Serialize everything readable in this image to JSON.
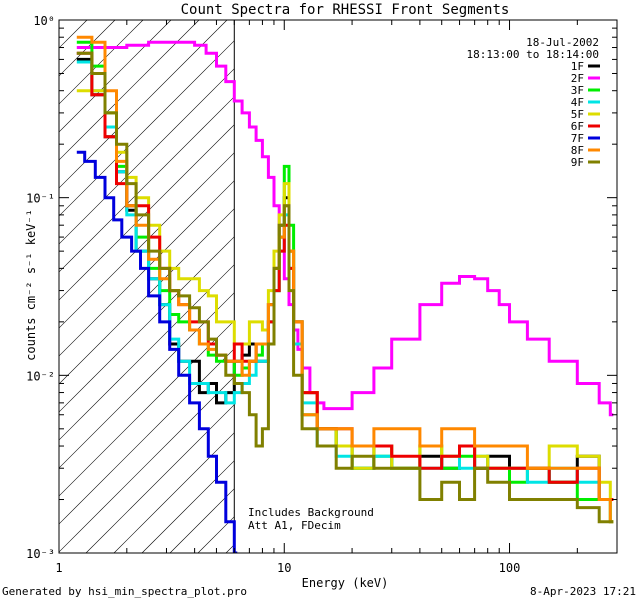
{
  "chart_data": {
    "type": "line",
    "title": "Count Spectra for RHESSI Front Segments",
    "xlabel": "Energy (keV)",
    "ylabel": "counts cm⁻² s⁻¹ keV⁻¹",
    "xscale": "log",
    "yscale": "log",
    "xlim": [
      1,
      300
    ],
    "ylim": [
      0.001,
      1
    ],
    "x_tick_labels": [
      "1",
      "10",
      "100"
    ],
    "y_tick_labels": [
      "10⁻³",
      "10⁻²",
      "10⁻¹",
      "10⁰"
    ],
    "date": "18-Jul-2002",
    "time_range": "18:13:00 to 18:14:00",
    "threshold_energy": 6,
    "annotation_lines": [
      "Includes Background",
      "Att A1, FDecim"
    ],
    "footer_left": "Generated by hsi_min_spectra_plot.pro",
    "footer_right": "8-Apr-2023 17:21",
    "series": [
      {
        "name": "1F",
        "color": "#000000",
        "x": [
          1.2,
          1.4,
          1.6,
          1.8,
          2.0,
          2.2,
          2.5,
          2.8,
          3.1,
          3.4,
          3.8,
          4.2,
          4.6,
          5.0,
          5.5,
          6.0,
          6.5,
          7.0,
          7.5,
          8.0,
          8.5,
          9.0,
          9.5,
          10.0,
          10.5,
          11.0,
          12,
          14,
          17,
          20,
          25,
          30,
          40,
          50,
          60,
          70,
          80,
          100,
          120,
          150,
          200,
          250,
          280
        ],
        "y": [
          0.6,
          0.38,
          0.22,
          0.14,
          0.085,
          0.05,
          0.035,
          0.025,
          0.015,
          0.012,
          0.012,
          0.008,
          0.009,
          0.007,
          0.008,
          0.012,
          0.013,
          0.015,
          0.012,
          0.012,
          0.025,
          0.04,
          0.07,
          0.1,
          0.05,
          0.02,
          0.008,
          0.005,
          0.004,
          0.003,
          0.004,
          0.003,
          0.0035,
          0.003,
          0.004,
          0.003,
          0.0035,
          0.003,
          0.003,
          0.0025,
          0.0035,
          0.002,
          0.002
        ]
      },
      {
        "name": "2F",
        "color": "#ff00ff",
        "x": [
          1.2,
          1.5,
          2,
          2.5,
          3,
          3.5,
          4,
          4.5,
          5,
          5.5,
          6,
          6.5,
          7,
          7.5,
          8,
          8.5,
          9,
          9.5,
          10,
          10.5,
          11,
          11.5,
          12,
          13,
          14,
          15,
          17,
          20,
          25,
          30,
          40,
          50,
          60,
          70,
          80,
          90,
          100,
          120,
          150,
          200,
          250,
          280
        ],
        "y": [
          0.7,
          0.7,
          0.72,
          0.75,
          0.75,
          0.75,
          0.72,
          0.65,
          0.55,
          0.45,
          0.35,
          0.3,
          0.25,
          0.21,
          0.17,
          0.13,
          0.09,
          0.06,
          0.035,
          0.025,
          0.018,
          0.014,
          0.011,
          0.008,
          0.007,
          0.0065,
          0.0065,
          0.008,
          0.011,
          0.016,
          0.025,
          0.033,
          0.036,
          0.035,
          0.03,
          0.025,
          0.02,
          0.016,
          0.012,
          0.009,
          0.007,
          0.006
        ]
      },
      {
        "name": "3F",
        "color": "#00ee00",
        "x": [
          1.2,
          1.4,
          1.6,
          1.8,
          2.0,
          2.2,
          2.5,
          2.8,
          3.1,
          3.4,
          3.8,
          4.2,
          4.6,
          5.0,
          5.5,
          6.0,
          6.5,
          7.0,
          7.5,
          8.0,
          8.5,
          9.0,
          9.5,
          10.0,
          10.5,
          11.0,
          12,
          14,
          17,
          20,
          25,
          30,
          40,
          50,
          60,
          70,
          80,
          100,
          120,
          150,
          200,
          250,
          280
        ],
        "y": [
          0.75,
          0.55,
          0.3,
          0.15,
          0.09,
          0.06,
          0.04,
          0.03,
          0.022,
          0.02,
          0.018,
          0.015,
          0.013,
          0.012,
          0.012,
          0.01,
          0.011,
          0.012,
          0.013,
          0.015,
          0.02,
          0.03,
          0.06,
          0.15,
          0.07,
          0.02,
          0.006,
          0.005,
          0.004,
          0.003,
          0.0035,
          0.003,
          0.004,
          0.003,
          0.0035,
          0.003,
          0.003,
          0.0025,
          0.003,
          0.0025,
          0.002,
          0.002,
          0.0015
        ]
      },
      {
        "name": "4F",
        "color": "#00e5e5",
        "x": [
          1.2,
          1.4,
          1.6,
          1.8,
          2.0,
          2.2,
          2.5,
          2.8,
          3.1,
          3.4,
          3.8,
          4.2,
          4.6,
          5.0,
          5.5,
          6.0,
          6.5,
          7.0,
          7.5,
          8.0,
          8.5,
          9.0,
          9.5,
          10.0,
          10.5,
          11.0,
          12,
          14,
          17,
          20,
          25,
          30,
          40,
          50,
          60,
          70,
          80,
          100,
          120,
          150,
          200,
          250,
          280
        ],
        "y": [
          0.58,
          0.4,
          0.25,
          0.14,
          0.08,
          0.05,
          0.035,
          0.025,
          0.016,
          0.012,
          0.009,
          0.009,
          0.008,
          0.008,
          0.007,
          0.008,
          0.009,
          0.01,
          0.012,
          0.012,
          0.02,
          0.03,
          0.05,
          0.08,
          0.04,
          0.015,
          0.007,
          0.004,
          0.0035,
          0.003,
          0.0035,
          0.003,
          0.003,
          0.0035,
          0.003,
          0.0035,
          0.003,
          0.003,
          0.0025,
          0.003,
          0.0025,
          0.002,
          0.002
        ]
      },
      {
        "name": "5F",
        "color": "#dddd00",
        "x": [
          1.2,
          1.4,
          1.6,
          1.8,
          2.0,
          2.2,
          2.5,
          2.8,
          3.1,
          3.4,
          3.8,
          4.2,
          4.6,
          5.0,
          5.5,
          6.0,
          6.5,
          7.0,
          7.5,
          8.0,
          8.5,
          9.0,
          9.5,
          10.0,
          10.5,
          11.0,
          12,
          14,
          17,
          20,
          25,
          30,
          40,
          50,
          60,
          70,
          80,
          100,
          120,
          150,
          200,
          250,
          280
        ],
        "y": [
          0.4,
          0.4,
          0.3,
          0.18,
          0.13,
          0.1,
          0.07,
          0.05,
          0.04,
          0.035,
          0.035,
          0.03,
          0.028,
          0.02,
          0.02,
          0.015,
          0.015,
          0.02,
          0.02,
          0.018,
          0.03,
          0.05,
          0.08,
          0.12,
          0.05,
          0.02,
          0.008,
          0.005,
          0.004,
          0.003,
          0.004,
          0.003,
          0.004,
          0.0035,
          0.004,
          0.0035,
          0.003,
          0.003,
          0.003,
          0.004,
          0.0035,
          0.0025,
          0.002
        ]
      },
      {
        "name": "6F",
        "color": "#ee0000",
        "x": [
          1.2,
          1.4,
          1.6,
          1.8,
          2.0,
          2.2,
          2.5,
          2.8,
          3.1,
          3.4,
          3.8,
          4.2,
          4.6,
          5.0,
          5.5,
          6.0,
          6.5,
          7.0,
          7.5,
          8.0,
          8.5,
          9.0,
          9.5,
          10.0,
          10.5,
          11.0,
          12,
          14,
          17,
          20,
          25,
          30,
          40,
          50,
          60,
          70,
          80,
          100,
          120,
          150,
          200,
          250,
          280
        ],
        "y": [
          0.65,
          0.38,
          0.22,
          0.12,
          0.09,
          0.09,
          0.06,
          0.04,
          0.03,
          0.025,
          0.02,
          0.02,
          0.015,
          0.013,
          0.012,
          0.015,
          0.012,
          0.012,
          0.015,
          0.015,
          0.02,
          0.03,
          0.05,
          0.07,
          0.04,
          0.02,
          0.008,
          0.005,
          0.005,
          0.004,
          0.004,
          0.0035,
          0.003,
          0.0035,
          0.004,
          0.003,
          0.003,
          0.003,
          0.003,
          0.0025,
          0.003,
          0.002,
          0.002
        ]
      },
      {
        "name": "7F",
        "color": "#0000dd",
        "x": [
          1.2,
          1.3,
          1.45,
          1.6,
          1.75,
          1.9,
          2.1,
          2.3,
          2.5,
          2.8,
          3.1,
          3.4,
          3.8,
          4.2,
          4.6,
          5.0,
          5.5,
          6.0
        ],
        "y": [
          0.18,
          0.16,
          0.13,
          0.1,
          0.075,
          0.06,
          0.05,
          0.04,
          0.028,
          0.02,
          0.014,
          0.01,
          0.007,
          0.005,
          0.0035,
          0.0025,
          0.0015,
          0.001
        ]
      },
      {
        "name": "8F",
        "color": "#ff8800",
        "x": [
          1.2,
          1.4,
          1.6,
          1.8,
          2.0,
          2.2,
          2.5,
          2.8,
          3.1,
          3.4,
          3.8,
          4.2,
          4.6,
          5.0,
          5.5,
          6.0,
          6.5,
          7.0,
          7.5,
          8.0,
          8.5,
          9.0,
          9.5,
          10.0,
          10.5,
          11.0,
          12,
          14,
          17,
          20,
          25,
          30,
          40,
          50,
          60,
          70,
          80,
          100,
          120,
          150,
          200,
          250,
          280
        ],
        "y": [
          0.8,
          0.75,
          0.4,
          0.16,
          0.09,
          0.07,
          0.045,
          0.035,
          0.03,
          0.025,
          0.018,
          0.015,
          0.014,
          0.013,
          0.012,
          0.012,
          0.01,
          0.012,
          0.015,
          0.015,
          0.025,
          0.04,
          0.06,
          0.09,
          0.05,
          0.02,
          0.006,
          0.005,
          0.005,
          0.004,
          0.005,
          0.005,
          0.004,
          0.005,
          0.005,
          0.004,
          0.004,
          0.004,
          0.003,
          0.003,
          0.003,
          0.002,
          0.0015
        ]
      },
      {
        "name": "9F",
        "color": "#808000",
        "x": [
          1.2,
          1.4,
          1.6,
          1.8,
          2.0,
          2.2,
          2.5,
          2.8,
          3.1,
          3.4,
          3.8,
          4.2,
          4.6,
          5.0,
          5.5,
          6.0,
          6.5,
          7.0,
          7.5,
          8.0,
          8.5,
          9.0,
          9.5,
          10.0,
          10.5,
          11.0,
          12,
          14,
          17,
          20,
          25,
          30,
          40,
          50,
          60,
          70,
          80,
          100,
          120,
          150,
          200,
          250,
          280
        ],
        "y": [
          0.65,
          0.5,
          0.3,
          0.2,
          0.12,
          0.08,
          0.05,
          0.04,
          0.03,
          0.028,
          0.024,
          0.02,
          0.016,
          0.013,
          0.01,
          0.009,
          0.008,
          0.006,
          0.004,
          0.005,
          0.015,
          0.04,
          0.07,
          0.09,
          0.03,
          0.01,
          0.005,
          0.004,
          0.003,
          0.0035,
          0.003,
          0.003,
          0.002,
          0.0025,
          0.002,
          0.003,
          0.0025,
          0.002,
          0.002,
          0.002,
          0.0018,
          0.0015,
          0.0015
        ]
      }
    ]
  }
}
